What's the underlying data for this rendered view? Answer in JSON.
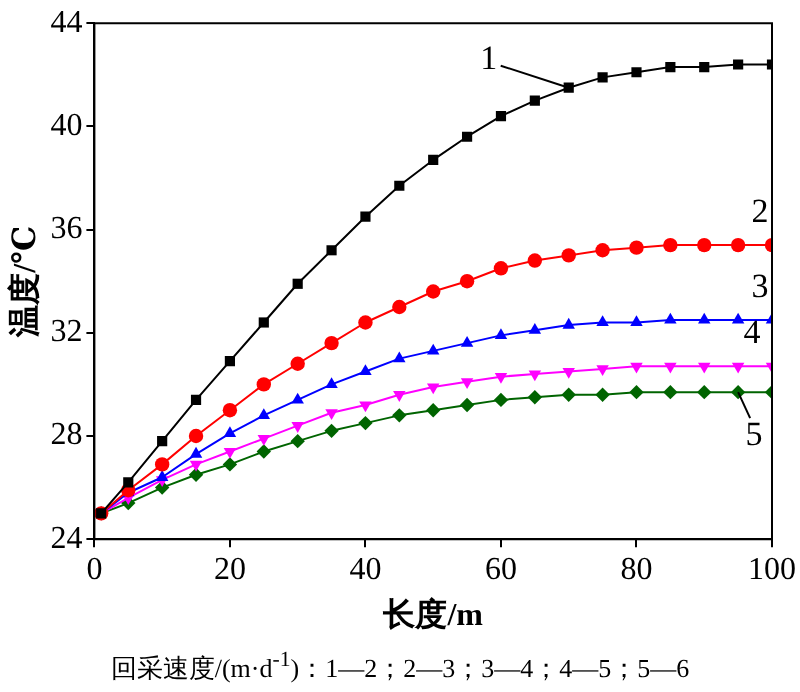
{
  "chart_data": {
    "type": "line",
    "xlabel": "长度/m",
    "ylabel": "温度/℃",
    "x": [
      1,
      5,
      10,
      15,
      20,
      25,
      30,
      35,
      40,
      45,
      50,
      55,
      60,
      65,
      70,
      75,
      80,
      85,
      90,
      95,
      100
    ],
    "series": [
      {
        "color": "#000000",
        "marker": "square",
        "values": [
          25,
          26.2,
          27.8,
          29.4,
          30.9,
          32.4,
          33.9,
          35.2,
          36.5,
          37.7,
          38.7,
          39.6,
          40.4,
          41.0,
          41.5,
          41.9,
          42.1,
          42.3,
          42.3,
          42.4,
          42.4
        ]
      },
      {
        "color": "#ff0000",
        "marker": "circle",
        "values": [
          25,
          25.9,
          26.9,
          28.0,
          29.0,
          30.0,
          30.8,
          31.6,
          32.4,
          33.0,
          33.6,
          34.0,
          34.5,
          34.8,
          35.0,
          35.2,
          35.3,
          35.4,
          35.4,
          35.4,
          35.4
        ]
      },
      {
        "color": "#0000ff",
        "marker": "triangle",
        "values": [
          25,
          25.8,
          26.4,
          27.3,
          28.1,
          28.8,
          29.4,
          30.0,
          30.5,
          31.0,
          31.3,
          31.6,
          31.9,
          32.1,
          32.3,
          32.4,
          32.4,
          32.5,
          32.5,
          32.5,
          32.5
        ]
      },
      {
        "color": "#ff00ff",
        "marker": "triangle-down",
        "values": [
          25,
          25.6,
          26.3,
          26.9,
          27.4,
          27.9,
          28.4,
          28.9,
          29.2,
          29.6,
          29.9,
          30.1,
          30.3,
          30.4,
          30.5,
          30.6,
          30.7,
          30.7,
          30.7,
          30.7,
          30.7
        ]
      },
      {
        "color": "#006400",
        "marker": "diamond",
        "values": [
          25,
          25.4,
          26.0,
          26.5,
          26.9,
          27.4,
          27.8,
          28.2,
          28.5,
          28.8,
          29.0,
          29.2,
          29.4,
          29.5,
          29.6,
          29.6,
          29.7,
          29.7,
          29.7,
          29.7,
          29.7
        ]
      }
    ],
    "xlim": [
      0,
      100
    ],
    "xticks": [
      0,
      20,
      40,
      60,
      80,
      100
    ],
    "ylim": [
      24,
      44
    ],
    "yticks": [
      24,
      28,
      32,
      36,
      40,
      44
    ],
    "grid": false,
    "legend": false,
    "line_style": "solid",
    "annotations": [
      {
        "text": "1",
        "x": 70,
        "y": 41.5
      },
      {
        "text": "2",
        "x": 100,
        "y": 35.4
      },
      {
        "text": "3",
        "x": 100,
        "y": 32.5
      },
      {
        "text": "4",
        "x": 100,
        "y": 30.7
      },
      {
        "text": "5",
        "x": 95,
        "y": 29.7
      },
      "回采速度/(m·d$^{-1}$)：1—2；2—3；3—4；4—5；5—6"
    ]
  }
}
